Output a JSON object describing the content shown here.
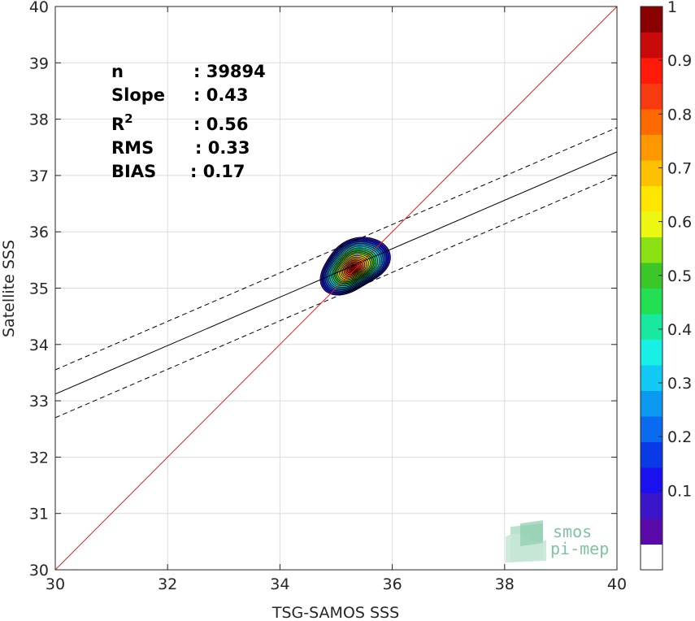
{
  "chart_data": {
    "type": "scatter",
    "subtype": "density-contour",
    "xlabel": "TSG-SAMOS SSS",
    "ylabel": "Satellite SSS",
    "xlim": [
      30,
      40
    ],
    "ylim": [
      30,
      40
    ],
    "xticks": [
      30,
      32,
      34,
      36,
      38,
      40
    ],
    "yticks": [
      30,
      31,
      32,
      33,
      34,
      35,
      36,
      37,
      38,
      39,
      40
    ],
    "grid": true,
    "stats": [
      {
        "key": "n",
        "sup": "",
        "value": ": 39894"
      },
      {
        "key": "Slope",
        "sup": "",
        "value": ": 0.43"
      },
      {
        "key": "R",
        "sup": "2",
        "value": ": 0.56"
      },
      {
        "key": "RMS",
        "sup": "",
        "value": ": 0.33"
      },
      {
        "key": "BIAS",
        "sup": "",
        "value": ": 0.17"
      }
    ],
    "identity_line": {
      "x": [
        30,
        40
      ],
      "y": [
        30,
        40
      ],
      "color": "#e0201a"
    },
    "regression_line": {
      "x": [
        30,
        40
      ],
      "y": [
        33.12,
        37.42
      ],
      "color": "#000000"
    },
    "confidence_lines": [
      {
        "x": [
          30,
          40
        ],
        "y": [
          33.55,
          37.85
        ]
      },
      {
        "x": [
          30,
          40
        ],
        "y": [
          32.7,
          37.0
        ]
      }
    ],
    "density_center": {
      "x": 35.3,
      "y": 35.35
    },
    "density_levels": [
      0.05,
      0.1,
      0.15,
      0.2,
      0.25,
      0.3,
      0.35,
      0.4,
      0.45,
      0.5,
      0.55,
      0.6,
      0.65,
      0.7,
      0.75,
      0.8,
      0.85,
      0.9,
      0.95,
      1.0
    ],
    "colorbar": {
      "min": 0,
      "max": 1,
      "ticks": [
        0.1,
        0.2,
        0.3,
        0.4,
        0.5,
        0.6,
        0.7,
        0.8,
        0.9,
        1
      ],
      "tick_labels": [
        "0.1",
        "0.2",
        "0.3",
        "0.4",
        "0.5",
        "0.6",
        "0.7",
        "0.8",
        "0.9",
        "1"
      ],
      "colors": [
        "#ffffff",
        "#5a0aa8",
        "#3a16c8",
        "#1a10f0",
        "#0a3ae6",
        "#0a6af0",
        "#0a98f0",
        "#12c8f4",
        "#18f0e6",
        "#18e8a0",
        "#22e052",
        "#3ac828",
        "#8ae010",
        "#ecf812",
        "#ffe600",
        "#ffc000",
        "#ff9800",
        "#ff6a00",
        "#f83a10",
        "#ff1a0a",
        "#c80a0a",
        "#8a0000"
      ]
    }
  },
  "logo": {
    "line1": "smos",
    "line2": "pi-mep"
  }
}
